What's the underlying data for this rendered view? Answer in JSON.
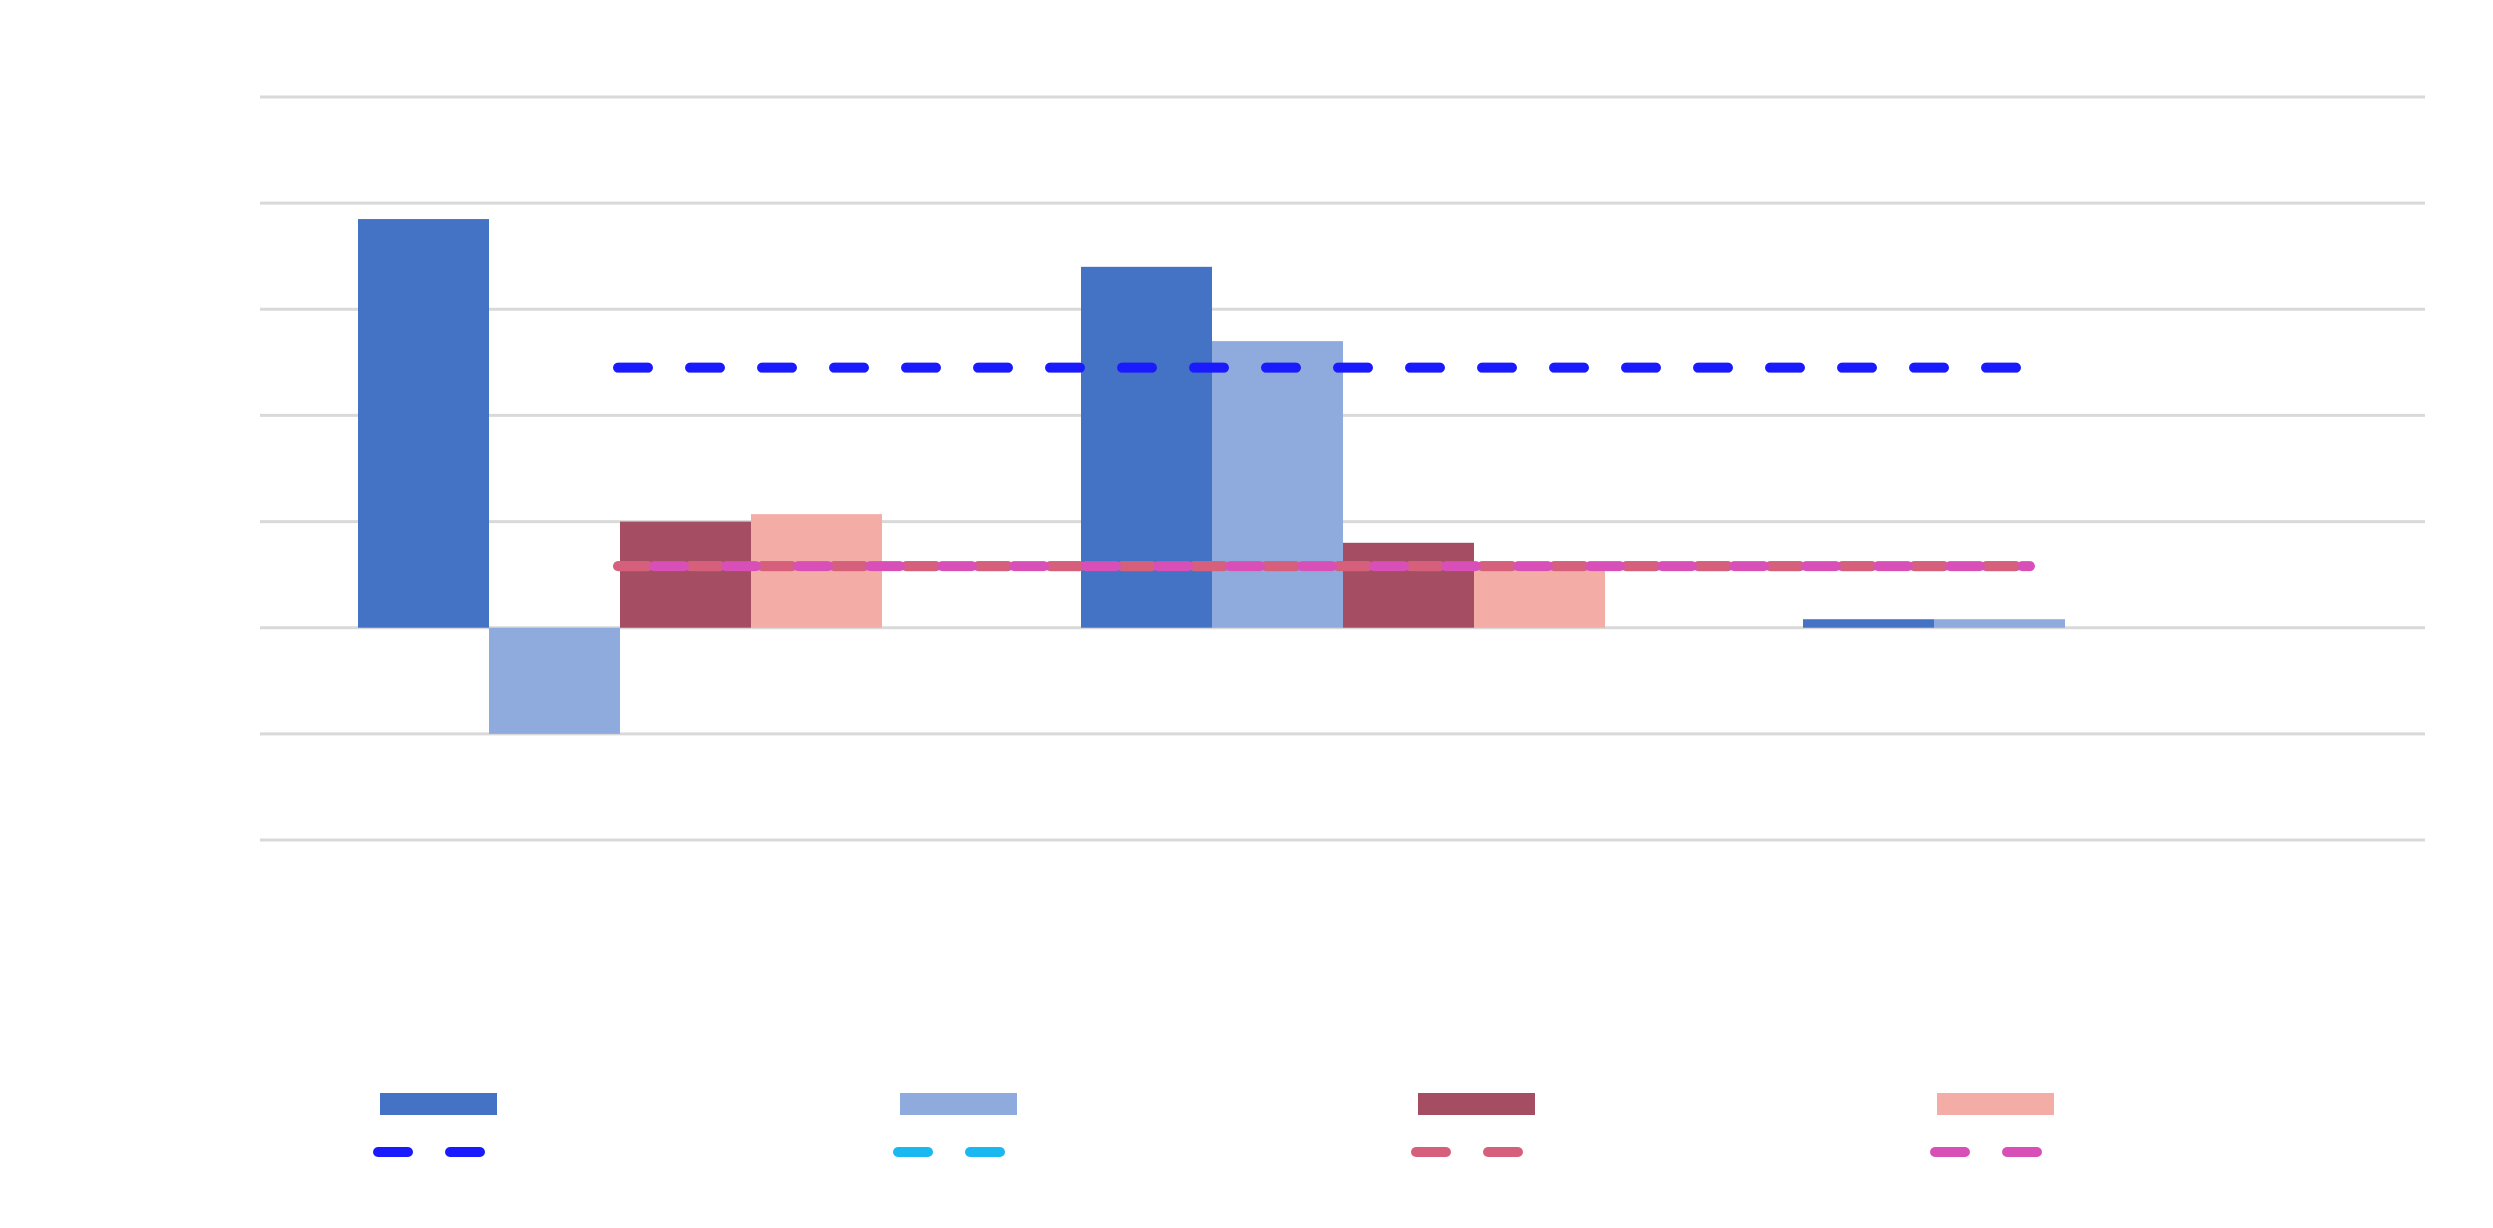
{
  "chart_data": {
    "type": "bar",
    "categories": [
      "",
      "",
      ""
    ],
    "series": [
      {
        "values": [
          3.85,
          3.4,
          0.08
        ],
        "color": "#4472c4"
      },
      {
        "values": [
          -1.0,
          2.7,
          0.08
        ],
        "color": "#8faadc"
      },
      {
        "values": [
          1.0,
          0.8,
          0.0
        ],
        "color": "#a44d63"
      },
      {
        "values": [
          1.07,
          0.58,
          0.0
        ],
        "color": "#f4aca7"
      }
    ],
    "reference_lines": [
      {
        "value": 2.45,
        "color": "#1a1aff",
        "style": "dashed"
      },
      {
        "value": 0.58,
        "color": "#19b8f0",
        "style": "dashed"
      },
      {
        "value": 0.58,
        "color": "#d6607c",
        "style": "dashed"
      },
      {
        "value": 0.58,
        "color": "#d94fb8",
        "style": "dashed"
      }
    ],
    "ylim": [
      -2,
      5
    ],
    "grid": true,
    "legend_position": "bottom",
    "title": "",
    "xlabel": "",
    "ylabel": ""
  }
}
